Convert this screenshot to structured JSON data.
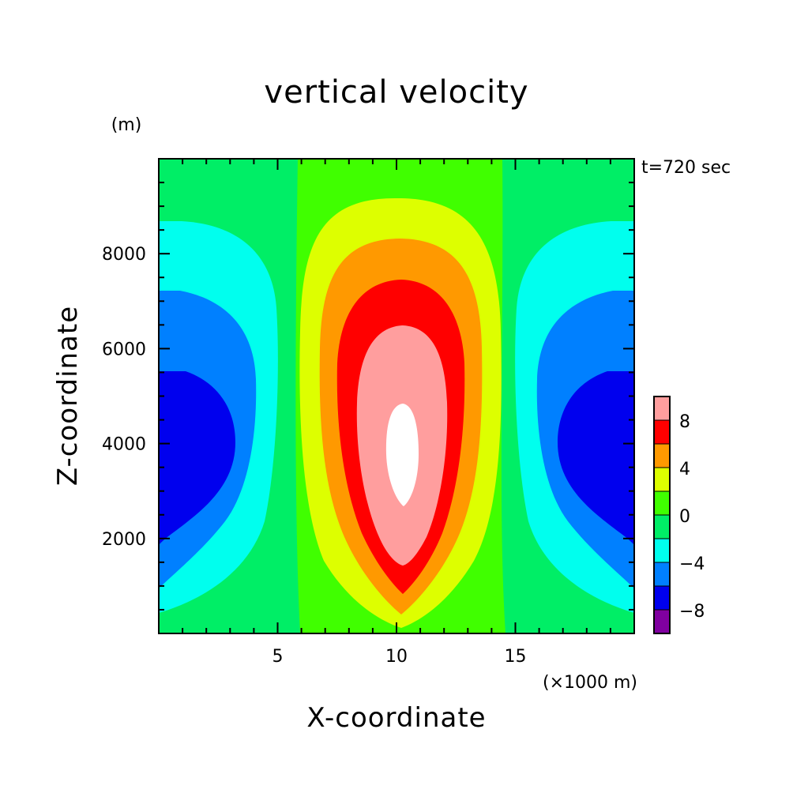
{
  "chart_data": {
    "type": "heatmap",
    "subtype": "filled-contour",
    "title": "vertical velocity",
    "ylabel": "Z-coordinate",
    "xlabel": "X-coordinate",
    "y_unit": "(m)",
    "x_unit": "(×1000 m)",
    "time_label": "t=720 sec",
    "xlim": [
      0,
      20
    ],
    "ylim": [
      0,
      10000
    ],
    "x_ticks": [
      5,
      10,
      15
    ],
    "x_tick_labels": [
      "5",
      "10",
      "15"
    ],
    "y_ticks": [
      2000,
      4000,
      6000,
      8000
    ],
    "y_tick_labels": [
      "2000",
      "4000",
      "6000",
      "8000"
    ],
    "colorbar": {
      "levels": [
        -10,
        -8,
        -6,
        -4,
        -2,
        0,
        2,
        4,
        6,
        8,
        10
      ],
      "tick_values": [
        -8,
        -4,
        0,
        4,
        8
      ],
      "tick_labels": [
        "−8",
        "−4",
        "0",
        "4",
        "8"
      ],
      "colors": [
        "#8000a0",
        "#0000ee",
        "#0080ff",
        "#00ffee",
        "#00ee66",
        "#40ff00",
        "#ddff00",
        "#ff9900",
        "#ff0000",
        "#ff9e9e"
      ],
      "above_color": "#ffffff"
    },
    "field_description": "updraft maximum about 10+ centred near x=10 (×1000 m), z=4000 m; downdrafts about -8 near x=0 and x=20 at z about 4000 m"
  }
}
